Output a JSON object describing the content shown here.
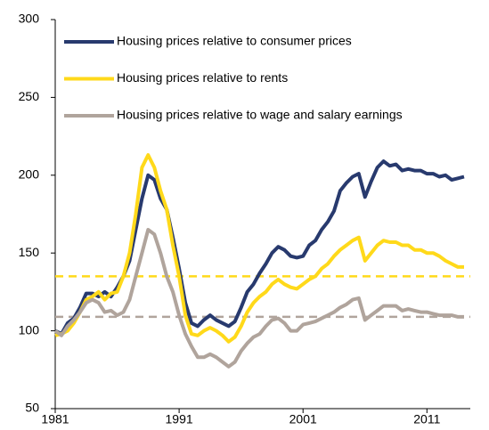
{
  "chart_data": {
    "type": "line",
    "x": [
      1981,
      1981.5,
      1982,
      1982.5,
      1983,
      1983.5,
      1984,
      1984.5,
      1985,
      1985.5,
      1986,
      1986.5,
      1987,
      1987.5,
      1988,
      1988.5,
      1989,
      1989.5,
      1990,
      1990.5,
      1991,
      1991.5,
      1992,
      1992.5,
      1993,
      1993.5,
      1994,
      1994.5,
      1995,
      1995.5,
      1996,
      1996.5,
      1997,
      1997.5,
      1998,
      1998.5,
      1999,
      1999.5,
      2000,
      2000.5,
      2001,
      2001.5,
      2002,
      2002.5,
      2003,
      2003.5,
      2004,
      2004.5,
      2005,
      2005.5,
      2006,
      2006.5,
      2007,
      2007.5,
      2008,
      2008.5,
      2009,
      2009.5,
      2010,
      2010.5,
      2011,
      2011.5,
      2012,
      2012.5,
      2013,
      2013.5,
      2014
    ],
    "series": [
      {
        "name": "Housing prices relative to consumer prices",
        "color": "#283a6e",
        "values": [
          100,
          98,
          105,
          108,
          115,
          124,
          124,
          122,
          125,
          122,
          128,
          135,
          145,
          165,
          185,
          200,
          197,
          185,
          178,
          160,
          140,
          118,
          105,
          103,
          107,
          110,
          107,
          105,
          103,
          106,
          115,
          125,
          130,
          137,
          143,
          150,
          154,
          152,
          148,
          147,
          148,
          155,
          158,
          165,
          170,
          177,
          190,
          195,
          199,
          201,
          186,
          196,
          205,
          209,
          206,
          207,
          203,
          204,
          203,
          203,
          201,
          201,
          199,
          200,
          197,
          198,
          199
        ]
      },
      {
        "name": "Housing prices relative to rents",
        "color": "#ffd91a",
        "values": [
          97,
          98,
          100,
          105,
          112,
          120,
          122,
          125,
          120,
          124,
          125,
          135,
          150,
          175,
          205,
          213,
          205,
          190,
          178,
          155,
          135,
          110,
          98,
          97,
          100,
          102,
          100,
          97,
          93,
          96,
          103,
          112,
          118,
          122,
          125,
          130,
          133,
          130,
          128,
          127,
          130,
          133,
          135,
          140,
          143,
          148,
          152,
          155,
          158,
          160,
          145,
          150,
          155,
          158,
          157,
          157,
          155,
          155,
          152,
          152,
          150,
          150,
          148,
          145,
          143,
          141,
          141
        ]
      },
      {
        "name": "Housing prices relative to wage and salary earnings",
        "color": "#b0a49c",
        "values": [
          100,
          97,
          103,
          107,
          112,
          118,
          120,
          118,
          112,
          113,
          110,
          112,
          120,
          135,
          150,
          165,
          162,
          150,
          135,
          125,
          110,
          98,
          90,
          83,
          83,
          85,
          83,
          80,
          77,
          80,
          87,
          92,
          96,
          98,
          103,
          107,
          108,
          105,
          100,
          100,
          104,
          105,
          106,
          108,
          110,
          112,
          115,
          117,
          120,
          121,
          107,
          110,
          113,
          116,
          116,
          116,
          113,
          114,
          113,
          112,
          112,
          111,
          110,
          110,
          110,
          109,
          109
        ]
      }
    ],
    "reference_lines": [
      {
        "value": 135,
        "color": "#ffd91a"
      },
      {
        "value": 109,
        "color": "#b0a49c"
      }
    ],
    "xlim": [
      1981,
      2014.5
    ],
    "xticks": [
      1981,
      1991,
      2001,
      2011
    ],
    "ylim": [
      50,
      300
    ],
    "yticks": [
      50,
      100,
      150,
      200,
      250,
      300
    ],
    "legend": "upper left"
  }
}
